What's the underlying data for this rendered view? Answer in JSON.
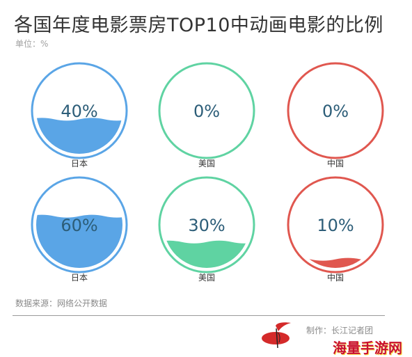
{
  "title": "各国年度电影票房TOP10中动画电影的比例",
  "unit": "单位：%",
  "chart_data": {
    "type": "gauge",
    "rows": [
      {
        "items": [
          {
            "label": "日本",
            "value": 40,
            "display": "40%",
            "color": "#5aa5e6"
          },
          {
            "label": "美国",
            "value": 0,
            "display": "0%",
            "color": "#5fd3a2"
          },
          {
            "label": "中国",
            "value": 0,
            "display": "0%",
            "color": "#e0574f"
          }
        ]
      },
      {
        "items": [
          {
            "label": "日本",
            "value": 60,
            "display": "60%",
            "color": "#5aa5e6"
          },
          {
            "label": "美国",
            "value": 30,
            "display": "30%",
            "color": "#5fd3a2"
          },
          {
            "label": "中国",
            "value": 10,
            "display": "10%",
            "color": "#e0574f"
          }
        ]
      }
    ],
    "value_text_color": "#2c5d78",
    "label_color": "#333333"
  },
  "source": "数据来源：网络公开数据",
  "credit": "制作：长江记者团",
  "watermark": "海量手游网"
}
